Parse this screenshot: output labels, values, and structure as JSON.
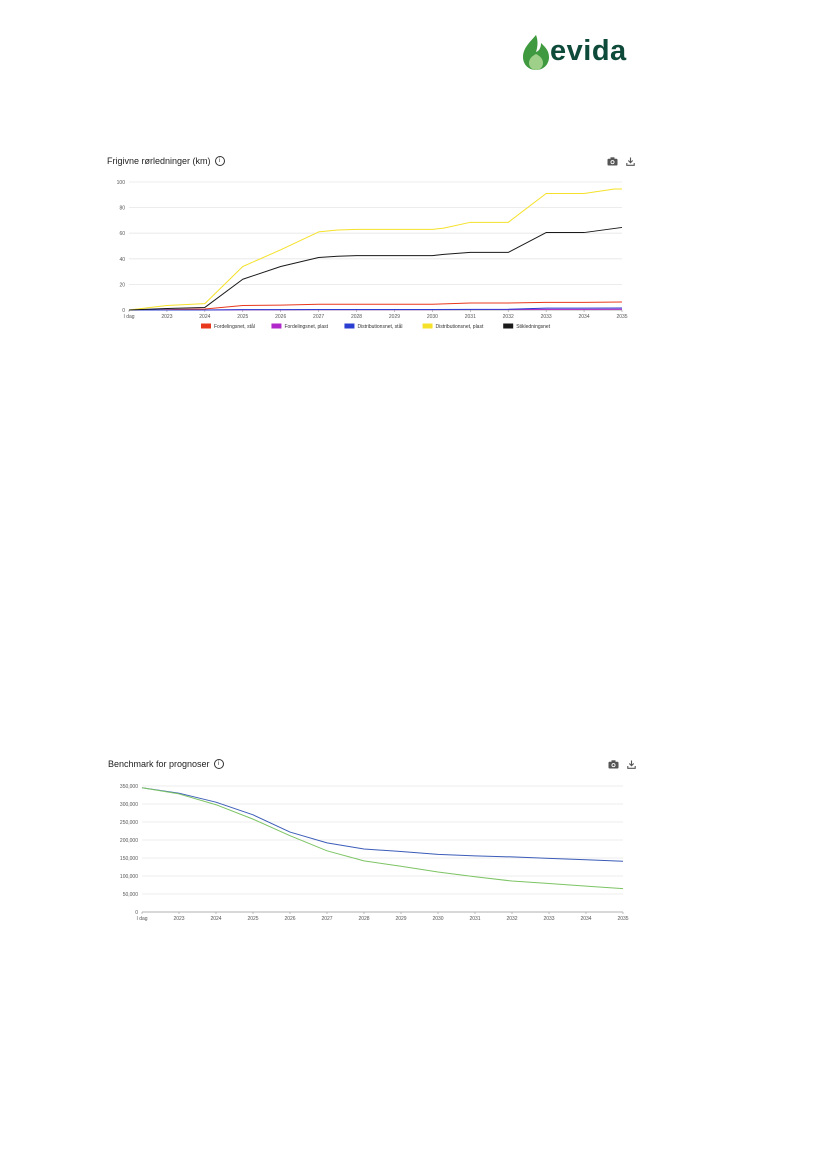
{
  "logo": {
    "text": "evida",
    "icon": "leaf-flame-icon",
    "color": "#0e4a3a"
  },
  "charts": [
    {
      "title": "Frigivne rørledninger (km)",
      "toolbar": {
        "camera": "camera-icon",
        "download": "download-icon"
      },
      "chart_data": {
        "type": "line",
        "title": "Frigivne rørledninger (km)",
        "xlabel": "",
        "ylabel": "",
        "categories": [
          "I dag",
          "2023",
          "2024",
          "2025",
          "2026",
          "2027",
          "2028",
          "2029",
          "2030",
          "2031",
          "2032",
          "2033",
          "2034",
          "2035"
        ],
        "yticks": [
          "0",
          "20",
          "40",
          "60",
          "80",
          "100"
        ],
        "ylim": [
          0,
          100
        ],
        "grid": true,
        "legend": "bottom",
        "series": [
          {
            "name": "Fordelingsnet, stål",
            "color": "#e8381d",
            "points": [
              [
                0,
                0
              ],
              [
                1,
                0.3
              ],
              [
                2,
                0.8
              ],
              [
                3,
                3.5
              ],
              [
                4,
                3.8
              ],
              [
                5,
                4.5
              ],
              [
                6,
                4.5
              ],
              [
                7,
                4.5
              ],
              [
                8,
                4.5
              ],
              [
                9,
                5.5
              ],
              [
                10,
                5.5
              ],
              [
                11,
                6
              ],
              [
                12,
                6
              ],
              [
                13,
                6.2
              ]
            ]
          },
          {
            "name": "Fordelingsnet, plast",
            "color": "#b028c9",
            "points": [
              [
                0,
                0
              ],
              [
                1,
                0
              ],
              [
                2,
                0
              ],
              [
                3,
                0.2
              ],
              [
                4,
                0.2
              ],
              [
                5,
                0.3
              ],
              [
                6,
                0.3
              ],
              [
                7,
                0.3
              ],
              [
                8,
                0.3
              ],
              [
                9,
                0.4
              ],
              [
                10,
                0.4
              ],
              [
                11,
                0.5
              ],
              [
                12,
                0.5
              ],
              [
                13,
                0.6
              ]
            ]
          },
          {
            "name": "Distributionsnet, stål",
            "color": "#2a3fd1",
            "points": [
              [
                0,
                0
              ],
              [
                1,
                0
              ],
              [
                2,
                0
              ],
              [
                3,
                0.3
              ],
              [
                4,
                0.3
              ],
              [
                5,
                0.4
              ],
              [
                6,
                0.4
              ],
              [
                7,
                0.4
              ],
              [
                8,
                0.4
              ],
              [
                9,
                0.5
              ],
              [
                10,
                0.6
              ],
              [
                11,
                1.5
              ],
              [
                12,
                1.5
              ],
              [
                13,
                1.6
              ]
            ]
          },
          {
            "name": "Distributionsnet, plast",
            "color": "#f5e12a",
            "points": [
              [
                0,
                0
              ],
              [
                1,
                3.5
              ],
              [
                2,
                5
              ],
              [
                3,
                34
              ],
              [
                4,
                47
              ],
              [
                5,
                61
              ],
              [
                5.5,
                62.5
              ],
              [
                6,
                63
              ],
              [
                7,
                63
              ],
              [
                8,
                63
              ],
              [
                8.3,
                64
              ],
              [
                9,
                68.5
              ],
              [
                10,
                68.5
              ],
              [
                11,
                91
              ],
              [
                12,
                91
              ],
              [
                12.8,
                94.5
              ],
              [
                13,
                94.5
              ]
            ]
          },
          {
            "name": "Stikledningsnet",
            "color": "#1a1a1a",
            "points": [
              [
                0,
                0
              ],
              [
                1,
                1.2
              ],
              [
                2,
                2
              ],
              [
                3,
                24
              ],
              [
                4,
                34
              ],
              [
                5,
                41
              ],
              [
                5.5,
                42
              ],
              [
                6,
                42.5
              ],
              [
                7,
                42.5
              ],
              [
                8,
                42.5
              ],
              [
                8.3,
                43.5
              ],
              [
                9,
                45
              ],
              [
                10,
                45
              ],
              [
                11,
                60.5
              ],
              [
                12,
                60.5
              ],
              [
                13,
                64.5
              ]
            ]
          }
        ]
      }
    },
    {
      "title": "Benchmark for prognoser",
      "toolbar": {
        "camera": "camera-icon",
        "download": "download-icon"
      },
      "chart_data": {
        "type": "line",
        "title": "Benchmark for prognoser",
        "xlabel": "",
        "ylabel": "",
        "categories": [
          "I dag",
          "2023",
          "2024",
          "2025",
          "2026",
          "2027",
          "2028",
          "2029",
          "2030",
          "2031",
          "2032",
          "2033",
          "2034",
          "2035"
        ],
        "yticks": [
          "0",
          "50,000",
          "100,000",
          "150,000",
          "200,000",
          "250,000",
          "300,000",
          "350,000"
        ],
        "ylim": [
          0,
          350000
        ],
        "grid": true,
        "legend": "none",
        "series": [
          {
            "name": "",
            "color": "#3b5cb8",
            "points": [
              [
                0,
                345000
              ],
              [
                1,
                330000
              ],
              [
                2,
                305000
              ],
              [
                3,
                270000
              ],
              [
                4,
                222000
              ],
              [
                5,
                192000
              ],
              [
                6,
                175000
              ],
              [
                7,
                168000
              ],
              [
                8,
                160000
              ],
              [
                9,
                156000
              ],
              [
                10,
                153000
              ],
              [
                11,
                149000
              ],
              [
                12,
                145000
              ],
              [
                13,
                141000
              ]
            ]
          },
          {
            "name": "",
            "color": "#7cc464",
            "points": [
              [
                0,
                345000
              ],
              [
                1,
                328000
              ],
              [
                2,
                298000
              ],
              [
                3,
                258000
              ],
              [
                4,
                212000
              ],
              [
                5,
                170000
              ],
              [
                6,
                142000
              ],
              [
                7,
                127000
              ],
              [
                8,
                111000
              ],
              [
                9,
                98000
              ],
              [
                10,
                86000
              ],
              [
                11,
                79000
              ],
              [
                12,
                72000
              ],
              [
                13,
                65000
              ]
            ]
          }
        ]
      }
    }
  ]
}
